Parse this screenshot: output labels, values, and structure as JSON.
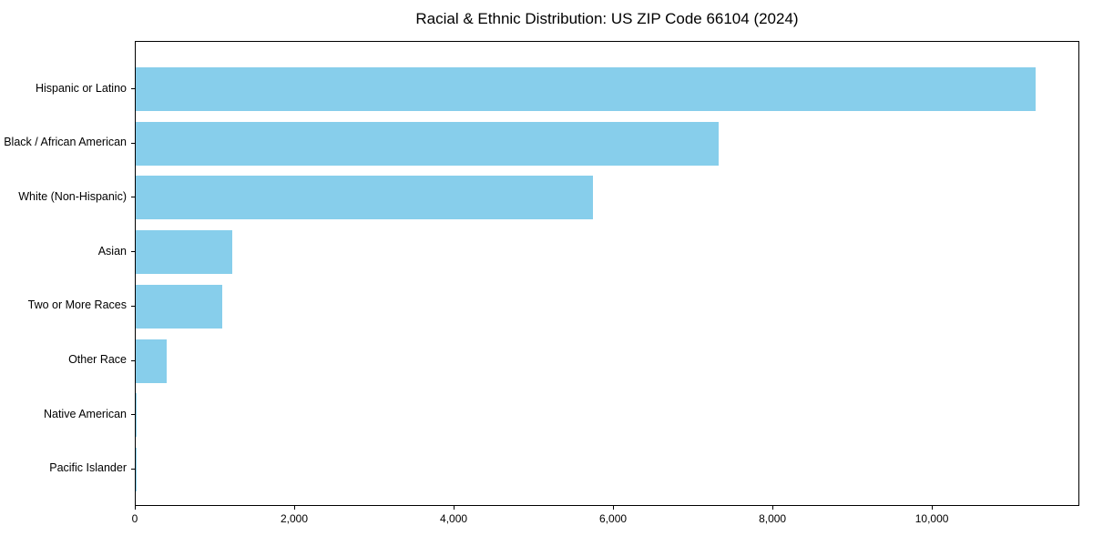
{
  "chart_data": {
    "type": "bar",
    "orientation": "horizontal",
    "title": "Racial & Ethnic Distribution: US ZIP Code 66104 (2024)",
    "categories": [
      "Hispanic or Latino",
      "Black / African American",
      "White (Non-Hispanic)",
      "Asian",
      "Two or More Races",
      "Other Race",
      "Native American",
      "Pacific Islander"
    ],
    "values": [
      11290,
      7310,
      5740,
      1210,
      1090,
      390,
      15,
      5
    ],
    "xlabel": "",
    "ylabel": "",
    "xlim": [
      0,
      11850
    ],
    "x_ticks": [
      0,
      2000,
      4000,
      6000,
      8000,
      10000
    ],
    "x_tick_labels": [
      "0",
      "2,000",
      "4,000",
      "6,000",
      "8,000",
      "10,000"
    ],
    "bar_color": "#87CEEB",
    "frame_color": "#000000",
    "grid": false,
    "legend_position": "none"
  }
}
